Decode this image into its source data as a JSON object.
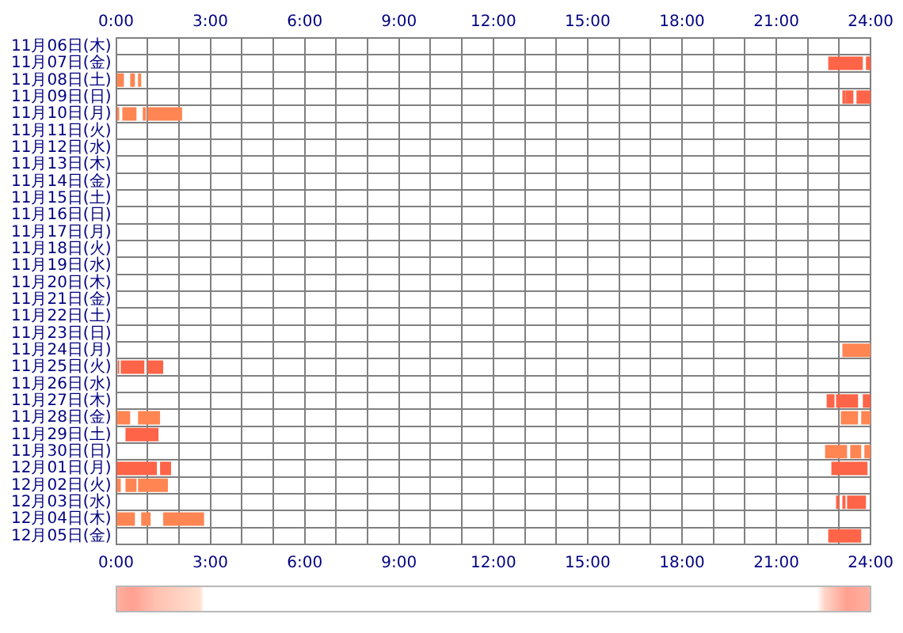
{
  "chart_data": {
    "type": "bar",
    "orientation": "horizontal",
    "grid": true,
    "legend": false,
    "categories": [
      "11月06日(木)",
      "11月07日(金)",
      "11月08日(土)",
      "11月09日(日)",
      "11月10日(月)",
      "11月11日(火)",
      "11月12日(水)",
      "11月13日(木)",
      "11月14日(金)",
      "11月15日(土)",
      "11月16日(日)",
      "11月17日(月)",
      "11月18日(火)",
      "11月19日(水)",
      "11月20日(木)",
      "11月21日(金)",
      "11月22日(土)",
      "11月23日(日)",
      "11月24日(月)",
      "11月25日(火)",
      "11月26日(水)",
      "11月27日(木)",
      "11月28日(金)",
      "11月29日(土)",
      "11月30日(日)",
      "12月01日(月)",
      "12月02日(火)",
      "12月03日(水)",
      "12月04日(木)",
      "12月05日(金)"
    ],
    "series": [
      {
        "base": [
          null,
          22.65,
          0,
          23.1,
          0,
          null,
          null,
          null,
          null,
          null,
          null,
          null,
          null,
          null,
          null,
          null,
          null,
          null,
          23.1,
          0.05,
          null,
          22.6,
          0,
          0.3,
          22.55,
          0,
          0,
          22.9,
          0,
          22.65
        ],
        "values": [
          null,
          1.1,
          0.25,
          0.1,
          0.1,
          null,
          null,
          null,
          null,
          null,
          null,
          null,
          null,
          null,
          null,
          null,
          null,
          null,
          0.9,
          0.05,
          null,
          0.25,
          0.45,
          1.05,
          0.7,
          1.3,
          0.15,
          0.1,
          0.6,
          1.05
        ],
        "colors": [
          null,
          "#fe6448",
          "#ff8553",
          "#fe6448",
          "#ff8553",
          null,
          null,
          null,
          null,
          null,
          null,
          null,
          null,
          null,
          null,
          null,
          null,
          null,
          "#ff8553",
          "#fe6448",
          null,
          "#fe6448",
          "#ff8553",
          "#fe6448",
          "#ff8553",
          "#fe6448",
          "#ff8553",
          "#fe6448",
          "#ff8553",
          "#fe6448"
        ]
      },
      {
        "base": [
          null,
          23.85,
          0.45,
          23.2,
          0.2,
          null,
          null,
          null,
          null,
          null,
          null,
          null,
          null,
          null,
          null,
          null,
          null,
          null,
          null,
          0.15,
          null,
          22.9,
          0.7,
          null,
          23.35,
          1.4,
          0.3,
          23.1,
          0.8,
          null
        ],
        "values": [
          null,
          0.15,
          0.15,
          0.25,
          0.45,
          null,
          null,
          null,
          null,
          null,
          null,
          null,
          null,
          null,
          null,
          null,
          null,
          null,
          null,
          0.75,
          null,
          0.7,
          0.7,
          null,
          0.35,
          0.35,
          0.35,
          0.1,
          0.3,
          null
        ],
        "colors": [
          null,
          "#fe6448",
          "#ff8553",
          "#fe6448",
          "#ff8553",
          null,
          null,
          null,
          null,
          null,
          null,
          null,
          null,
          null,
          null,
          null,
          null,
          null,
          null,
          "#fe6448",
          null,
          "#fe6448",
          "#ff8553",
          null,
          "#ff8553",
          "#fe6448",
          "#ff8553",
          "#fe6448",
          "#ff8553",
          null
        ]
      },
      {
        "base": [
          null,
          null,
          0.7,
          23.55,
          0.85,
          null,
          null,
          null,
          null,
          null,
          null,
          null,
          null,
          null,
          null,
          null,
          null,
          null,
          null,
          1,
          null,
          23.75,
          23.05,
          null,
          23.8,
          22.75,
          0.7,
          23.25,
          1.5,
          null
        ],
        "values": [
          null,
          null,
          0.1,
          0.45,
          0.1,
          null,
          null,
          null,
          null,
          null,
          null,
          null,
          null,
          null,
          null,
          null,
          null,
          null,
          null,
          0.5,
          null,
          0.25,
          0.55,
          null,
          0.2,
          1.15,
          0.95,
          0.6,
          1.3,
          null
        ],
        "colors": [
          null,
          null,
          "#ff8553",
          "#fe6448",
          "#ff8553",
          null,
          null,
          null,
          null,
          null,
          null,
          null,
          null,
          null,
          null,
          null,
          null,
          null,
          null,
          "#fe6448",
          null,
          "#fe6448",
          "#ff8553",
          null,
          "#ff8553",
          "#fe6448",
          "#ff8553",
          "#fe6448",
          "#ff8553",
          null
        ]
      },
      {
        "base": [
          null,
          null,
          null,
          null,
          1,
          null,
          null,
          null,
          null,
          null,
          null,
          null,
          null,
          null,
          null,
          null,
          null,
          null,
          null,
          null,
          null,
          null,
          23.7,
          null,
          null,
          null,
          null,
          null,
          null,
          null
        ],
        "values": [
          null,
          null,
          null,
          null,
          1.1,
          null,
          null,
          null,
          null,
          null,
          null,
          null,
          null,
          null,
          null,
          null,
          null,
          null,
          null,
          null,
          null,
          null,
          0.3,
          null,
          null,
          null,
          null,
          null,
          null,
          null
        ],
        "colors": [
          null,
          null,
          null,
          null,
          "#ff8553",
          null,
          null,
          null,
          null,
          null,
          null,
          null,
          null,
          null,
          null,
          null,
          null,
          null,
          null,
          null,
          null,
          null,
          "#ff8553",
          null,
          null,
          null,
          null,
          null,
          null,
          null
        ]
      }
    ],
    "xlim": [
      0,
      24
    ],
    "xticks": [
      {
        "value": 0,
        "label": "0:00"
      },
      {
        "value": 1,
        "label": null
      },
      {
        "value": 2,
        "label": null
      },
      {
        "value": 3,
        "label": "3:00"
      },
      {
        "value": 4,
        "label": null
      },
      {
        "value": 5,
        "label": null
      },
      {
        "value": 6,
        "label": "6:00"
      },
      {
        "value": 7,
        "label": null
      },
      {
        "value": 8,
        "label": null
      },
      {
        "value": 9,
        "label": "9:00"
      },
      {
        "value": 10,
        "label": null
      },
      {
        "value": 11,
        "label": null
      },
      {
        "value": 12,
        "label": "12:00"
      },
      {
        "value": 13,
        "label": null
      },
      {
        "value": 14,
        "label": null
      },
      {
        "value": 15,
        "label": "15:00"
      },
      {
        "value": 16,
        "label": null
      },
      {
        "value": 17,
        "label": null
      },
      {
        "value": 18,
        "label": "18:00"
      },
      {
        "value": 19,
        "label": null
      },
      {
        "value": 20,
        "label": null
      },
      {
        "value": 21,
        "label": "21:00"
      },
      {
        "value": 22,
        "label": null
      },
      {
        "value": 23,
        "label": null
      },
      {
        "value": 24,
        "label": "24:00"
      }
    ],
    "x2lim": [
      0,
      24
    ],
    "x2ticks": [
      {
        "value": 0,
        "label": "0:00"
      },
      {
        "value": 3,
        "label": "3:00"
      },
      {
        "value": 6,
        "label": "6:00"
      },
      {
        "value": 9,
        "label": "9:00"
      },
      {
        "value": 12,
        "label": "12:00"
      },
      {
        "value": 15,
        "label": "15:00"
      },
      {
        "value": 18,
        "label": "18:00"
      },
      {
        "value": 21,
        "label": "21:00"
      },
      {
        "value": 24,
        "label": "24:00"
      }
    ]
  }
}
